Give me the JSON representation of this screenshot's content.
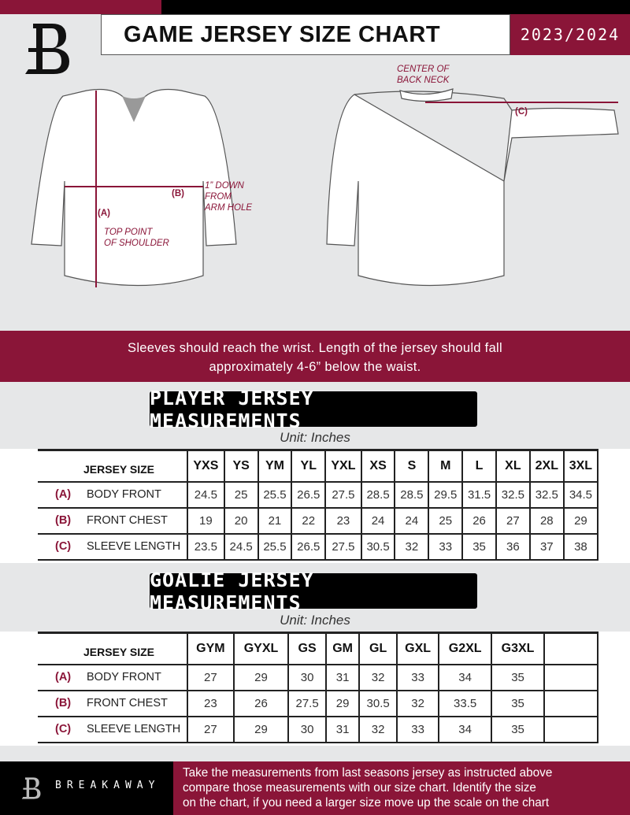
{
  "header": {
    "title": "GAME JERSEY SIZE CHART",
    "season": "2023/2024"
  },
  "colors": {
    "accent": "#8a1538",
    "dark": "#000000",
    "background": "#e6e7e8"
  },
  "diagram": {
    "labels": {
      "a": "(A)",
      "b": "(B)",
      "c": "(C)"
    },
    "notes": {
      "shoulder_1": "TOP POINT",
      "shoulder_2": "OF SHOULDER",
      "arm_1": "1” DOWN",
      "arm_2": "FROM",
      "arm_3": "ARM HOLE",
      "neck_1": "CENTER OF",
      "neck_2": "BACK NECK"
    }
  },
  "band": {
    "line1": "Sleeves should reach the wrist. Length of the jersey should fall",
    "line2": "approximately 4-6” below the waist."
  },
  "player": {
    "title": "PLAYER JERSEY MEASUREMENTS",
    "unit": "Unit: Inches",
    "size_label": "JERSEY SIZE",
    "sizes": [
      "YXS",
      "YS",
      "YM",
      "YL",
      "YXL",
      "XS",
      "S",
      "M",
      "L",
      "XL",
      "2XL",
      "3XL"
    ],
    "rows": [
      {
        "code": "(A)",
        "name": "BODY FRONT",
        "values": [
          "24.5",
          "25",
          "25.5",
          "26.5",
          "27.5",
          "28.5",
          "28.5",
          "29.5",
          "31.5",
          "32.5",
          "32.5",
          "34.5"
        ]
      },
      {
        "code": "(B)",
        "name": "FRONT CHEST",
        "values": [
          "19",
          "20",
          "21",
          "22",
          "23",
          "24",
          "24",
          "25",
          "26",
          "27",
          "28",
          "29"
        ]
      },
      {
        "code": "(C)",
        "name": "SLEEVE LENGTH",
        "values": [
          "23.5",
          "24.5",
          "25.5",
          "26.5",
          "27.5",
          "30.5",
          "32",
          "33",
          "35",
          "36",
          "37",
          "38"
        ]
      }
    ]
  },
  "goalie": {
    "title": "GOALIE JERSEY MEASUREMENTS",
    "unit": "Unit: Inches",
    "size_label": "JERSEY SIZE",
    "sizes": [
      "GYM",
      "GYXL",
      "GS",
      "GM",
      "GL",
      "GXL",
      "G2XL",
      "G3XL"
    ],
    "rows": [
      {
        "code": "(A)",
        "name": "BODY FRONT",
        "values": [
          "27",
          "29",
          "30",
          "31",
          "32",
          "33",
          "34",
          "35"
        ]
      },
      {
        "code": "(B)",
        "name": "FRONT CHEST",
        "values": [
          "23",
          "26",
          "27.5",
          "29",
          "30.5",
          "32",
          "33.5",
          "35"
        ]
      },
      {
        "code": "(C)",
        "name": "SLEEVE LENGTH",
        "values": [
          "27",
          "29",
          "30",
          "31",
          "32",
          "33",
          "34",
          "35"
        ]
      }
    ]
  },
  "footer": {
    "brand": "BREAKAWAY",
    "line1": "Take the measurements from last seasons jersey as instructed above",
    "line2": "compare those measurements  with our size chart. Identify the size",
    "line3": "on the chart, if you need a larger size move up the scale on the chart"
  }
}
